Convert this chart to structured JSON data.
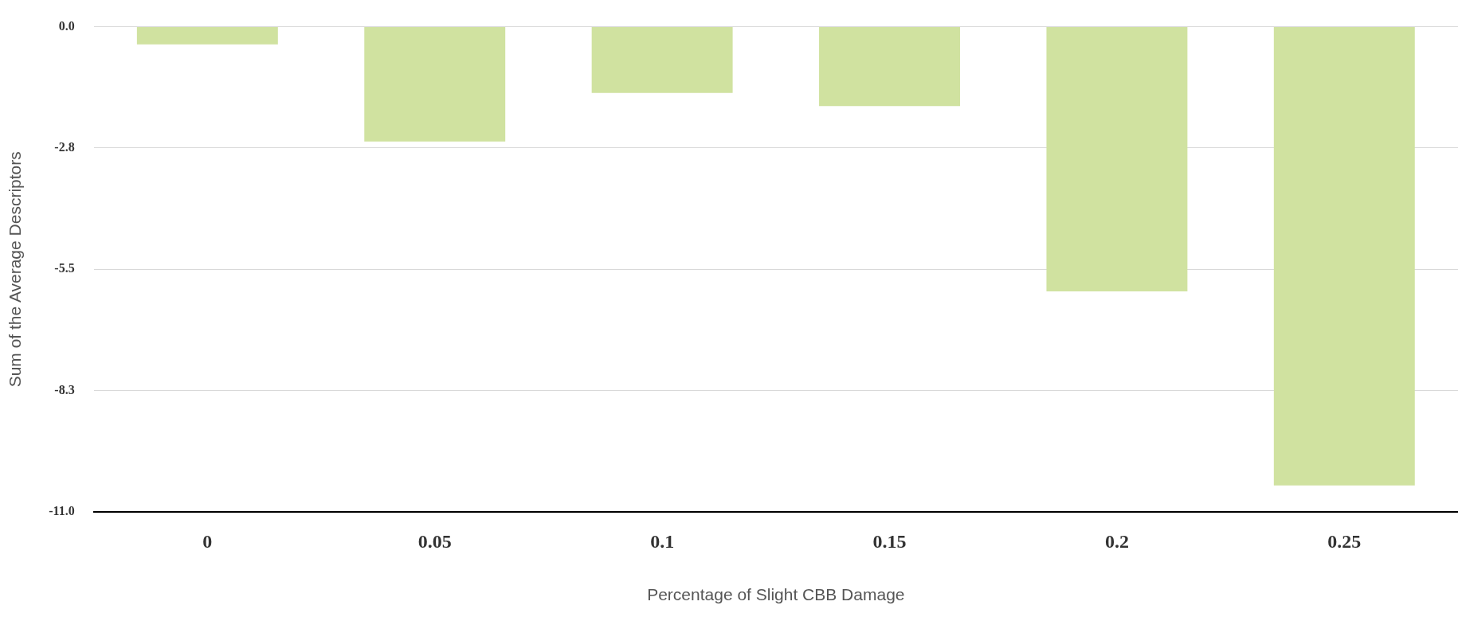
{
  "chart_data": {
    "type": "bar",
    "xlabel": "Percentage of Slight CBB Damage",
    "ylabel": "Sum of the Average Descriptors",
    "categories": [
      "0",
      "0.05",
      "0.1",
      "0.15",
      "0.2",
      "0.25"
    ],
    "values": [
      -0.4,
      -2.6,
      -1.5,
      -1.8,
      -6.0,
      -10.4
    ],
    "color": "#d0e2a0",
    "ylim": [
      -11,
      0
    ],
    "yticks": [
      {
        "value": -11,
        "label": "-11.0"
      },
      {
        "value": -8.25,
        "label": "-8.3"
      },
      {
        "value": -5.5,
        "label": "-5.5"
      },
      {
        "value": -2.75,
        "label": "-2.8"
      },
      {
        "value": 0,
        "label": "0.0"
      }
    ],
    "grid": "y",
    "legend": false
  }
}
